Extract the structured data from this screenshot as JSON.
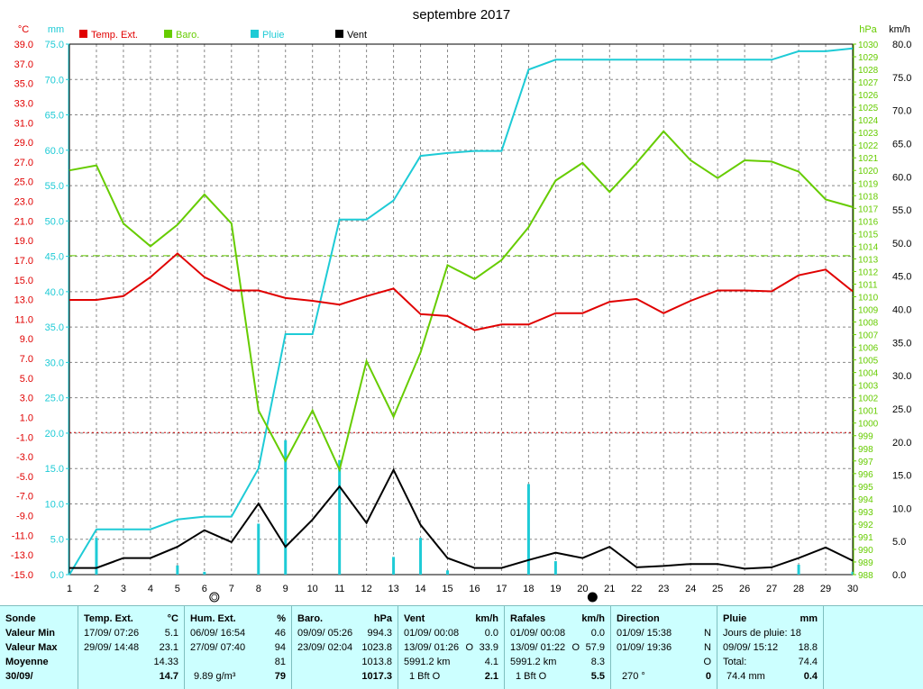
{
  "chart_data": {
    "type": "line",
    "title": "septembre 2017",
    "x_ticks": [
      1,
      2,
      3,
      4,
      5,
      6,
      7,
      8,
      9,
      10,
      11,
      12,
      13,
      14,
      15,
      16,
      17,
      18,
      19,
      20,
      21,
      22,
      23,
      24,
      25,
      26,
      27,
      28,
      29,
      30
    ],
    "xlim": [
      1,
      30
    ],
    "grid": true,
    "legend_placement": "top",
    "axes": {
      "temperature": {
        "unit": "°C",
        "side": "left-outer",
        "ylim": [
          -15,
          41
        ],
        "ticks": [
          "39.0",
          "37.0",
          "35.0",
          "33.0",
          "31.0",
          "29.0",
          "27.0",
          "25.0",
          "23.0",
          "21.0",
          "19.0",
          "17.0",
          "15.0",
          "13.0",
          "11.0",
          "9.0",
          "7.0",
          "5.0",
          "3.0",
          "1.0",
          "-1.0",
          "-3.0",
          "-5.0",
          "-7.0",
          "-9.0",
          "-11.0",
          "-13.0",
          "-15.0"
        ]
      },
      "rain": {
        "unit": "mm",
        "side": "left-inner",
        "ylim": [
          0,
          75
        ],
        "ticks": [
          "75.0",
          "70.0",
          "65.0",
          "60.0",
          "55.0",
          "50.0",
          "45.0",
          "40.0",
          "35.0",
          "30.0",
          "25.0",
          "20.0",
          "15.0",
          "10.0",
          "5.0",
          "0.0"
        ]
      },
      "pressure": {
        "unit": "hPa",
        "side": "right-inner",
        "ylim": [
          988,
          1030
        ],
        "ticks": [
          "1030",
          "1029",
          "1028",
          "1027",
          "1026",
          "1025",
          "1024",
          "1023",
          "1022",
          "1021",
          "1020",
          "1019",
          "1018",
          "1017",
          "1016",
          "1015",
          "1014",
          "1013",
          "1012",
          "1011",
          "1010",
          "1009",
          "1008",
          "1007",
          "1006",
          "1005",
          "1004",
          "1003",
          "1002",
          "1001",
          "1000",
          "999",
          "998",
          "997",
          "996",
          "995",
          "994",
          "993",
          "992",
          "991",
          "990",
          "989",
          "988"
        ]
      },
      "wind": {
        "unit": "km/h",
        "side": "right-outer",
        "ylim": [
          0,
          80
        ],
        "ticks": [
          "80.0",
          "75.0",
          "70.0",
          "65.0",
          "60.0",
          "55.0",
          "50.0",
          "45.0",
          "40.0",
          "35.0",
          "30.0",
          "25.0",
          "20.0",
          "15.0",
          "10.0",
          "5.0",
          "0.0"
        ]
      }
    },
    "series": [
      {
        "name": "Temp. Ext.",
        "axis": "temperature",
        "color": "#e00000",
        "x": [
          1,
          2,
          3,
          4,
          5,
          6,
          7,
          8,
          9,
          10,
          11,
          12,
          13,
          14,
          15,
          16,
          17,
          18,
          19,
          20,
          21,
          22,
          23,
          24,
          25,
          26,
          27,
          28,
          29,
          30
        ],
        "values": [
          14.0,
          14.0,
          14.4,
          16.4,
          18.9,
          16.4,
          15.0,
          15.0,
          14.2,
          13.9,
          13.5,
          14.4,
          15.2,
          12.5,
          12.3,
          10.8,
          11.4,
          11.4,
          12.6,
          12.6,
          13.8,
          14.1,
          12.6,
          13.9,
          15.0,
          15.0,
          14.9,
          16.6,
          17.2,
          14.9
        ]
      },
      {
        "name": "Baro.",
        "axis": "pressure",
        "color": "#66cc00",
        "x": [
          1,
          2,
          3,
          4,
          5,
          6,
          7,
          8,
          9,
          10,
          11,
          12,
          13,
          14,
          15,
          16,
          17,
          18,
          19,
          20,
          21,
          22,
          23,
          24,
          25,
          26,
          27,
          28,
          29,
          30
        ],
        "values": [
          1020.0,
          1020.4,
          1015.8,
          1014.0,
          1015.7,
          1018.1,
          1015.8,
          1001.0,
          997.0,
          1001.0,
          996.3,
          1004.9,
          1000.5,
          1005.6,
          1012.5,
          1011.4,
          1012.9,
          1015.5,
          1019.2,
          1020.6,
          1018.3,
          1020.6,
          1023.1,
          1020.8,
          1019.4,
          1020.8,
          1020.7,
          1019.9,
          1017.7,
          1017.1
        ]
      },
      {
        "name": "Pluie",
        "axis": "rain",
        "color": "#1ecbd6",
        "x": [
          1,
          2,
          3,
          4,
          5,
          6,
          7,
          8,
          9,
          10,
          11,
          12,
          13,
          14,
          15,
          16,
          17,
          18,
          19,
          20,
          21,
          22,
          23,
          24,
          25,
          26,
          27,
          28,
          29,
          30
        ],
        "values": [
          0.0,
          6.4,
          6.4,
          6.4,
          7.8,
          8.2,
          8.2,
          15.0,
          34.0,
          34.0,
          50.2,
          50.2,
          52.9,
          59.2,
          59.6,
          59.9,
          59.9,
          71.4,
          72.8,
          72.8,
          72.8,
          72.8,
          72.8,
          72.8,
          72.8,
          72.8,
          72.8,
          74.0,
          74.0,
          74.4
        ]
      },
      {
        "name": "Vent",
        "axis": "wind",
        "color": "#000000",
        "x": [
          1,
          2,
          3,
          4,
          5,
          6,
          7,
          8,
          9,
          10,
          11,
          12,
          13,
          14,
          15,
          16,
          17,
          18,
          19,
          20,
          21,
          22,
          23,
          24,
          25,
          26,
          27,
          28,
          29,
          30
        ],
        "values": [
          1.0,
          1.0,
          2.5,
          2.5,
          4.2,
          6.7,
          4.9,
          10.7,
          4.2,
          8.3,
          13.3,
          7.8,
          15.8,
          7.5,
          2.5,
          1.0,
          1.0,
          2.2,
          3.3,
          2.5,
          4.2,
          1.1,
          1.3,
          1.6,
          1.6,
          0.9,
          1.1,
          2.5,
          4.1,
          2.1
        ]
      }
    ],
    "daily_rain_bars": {
      "axis": "rain",
      "color": "#1ecbd6",
      "x": [
        2,
        5,
        6,
        8,
        9,
        11,
        13,
        14,
        15,
        18,
        19,
        28,
        30
      ],
      "values": [
        5.2,
        1.3,
        0.4,
        7.2,
        19.0,
        16.2,
        2.5,
        5.2,
        0.6,
        12.8,
        1.9,
        1.4,
        0.4
      ]
    },
    "reference_lines": [
      {
        "axis": "pressure",
        "value": 1013.25,
        "color": "#66cc00",
        "style": "dashed"
      },
      {
        "axis": "temperature",
        "value": 0.0,
        "color": "#cc0000",
        "style": "dotted"
      }
    ],
    "moon_markers": [
      {
        "x": 6,
        "phase": "full"
      },
      {
        "x": 20,
        "phase": "new"
      }
    ]
  },
  "summary": {
    "sonde": {
      "header": "Sonde",
      "rows": [
        "Valeur Min",
        "Valeur Max",
        "Moyenne",
        "30/09/"
      ]
    },
    "temperature": {
      "header": "Temp. Ext.",
      "unit": "°C",
      "min_date": "17/09/  07:26",
      "min_val": "5.1",
      "max_date": "29/09/  14:48",
      "max_val": "23.1",
      "mean": "14.33",
      "day_val": "14.7"
    },
    "humidity": {
      "header": "Hum. Ext.",
      "unit": "%",
      "min_date": "06/09/  16:54",
      "min_val": "46",
      "max_date": "27/09/  07:40",
      "max_val": "94",
      "mean": "81",
      "day_extra": "9.89 g/m³",
      "day_val": "79"
    },
    "barometer": {
      "header": "Baro.",
      "unit": "hPa",
      "min_date": "09/09/  05:26",
      "min_val": "994.3",
      "max_date": "23/09/  02:04",
      "max_val": "1023.8",
      "mean": "1013.8",
      "day_val": "1017.3"
    },
    "wind": {
      "header": "Vent",
      "unit": "km/h",
      "min_date": "01/09/  00:08",
      "min_val": "0.0",
      "max_date": "13/09/  01:26",
      "max_dir": "O",
      "max_val": "33.9",
      "dist": "5991.2 km",
      "dist_val": "4.1",
      "day_extra": "1 Bft O",
      "day_val": "2.1"
    },
    "gusts": {
      "header": "Rafales",
      "unit": "km/h",
      "min_date": "01/09/  00:08",
      "min_val": "0.0",
      "max_date": "13/09/  01:22",
      "max_dir": "O",
      "max_val": "57.9",
      "dist": "5991.2 km",
      "dist_val": "8.3",
      "day_extra": "1 Bft O",
      "day_val": "5.5"
    },
    "direction": {
      "header": "Direction",
      "row1_date": "01/09/  15:38",
      "row1_val": "N",
      "row2_date": "01/09/  19:36",
      "row2_val": "N",
      "row3_val": "O",
      "day_extra": "270 °",
      "day_val": "0"
    },
    "rain": {
      "header": "Pluie",
      "unit": "mm",
      "days_label": "Jours de pluie: 18",
      "max_date": "09/09/  15:12",
      "max_val": "18.8",
      "total_label": "Total:",
      "total_val": "74.4",
      "day_extra": "74.4 mm",
      "day_val": "0.4"
    }
  }
}
